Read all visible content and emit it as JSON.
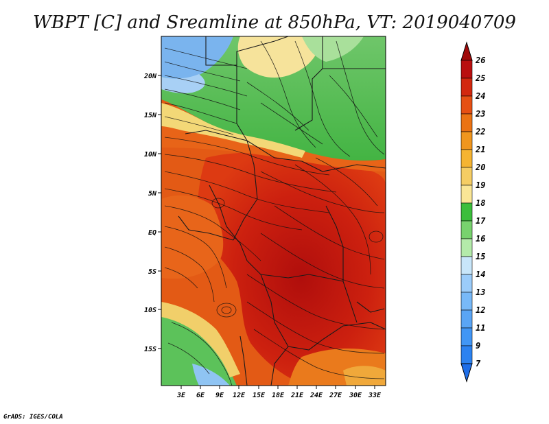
{
  "title": "WBPT [C] and Sreamline at 850hPa, VT: 2019040709",
  "credit": "GrADS: IGES/COLA",
  "map": {
    "lat_labels": [
      "20N",
      "15N",
      "10N",
      "5N",
      "EQ",
      "5S",
      "10S",
      "15S"
    ],
    "lon_labels": [
      "3E",
      "6E",
      "9E",
      "12E",
      "15E",
      "18E",
      "21E",
      "24E",
      "27E",
      "30E",
      "33E"
    ],
    "variable": "wet-bulb potential temperature",
    "level": "850hPa",
    "overlay": "streamlines"
  },
  "colorbar": {
    "labels": [
      "7",
      "9",
      "11",
      "12",
      "13",
      "14",
      "15",
      "16",
      "17",
      "18",
      "19",
      "20",
      "21",
      "22",
      "23",
      "24",
      "25",
      "26"
    ],
    "colors": [
      "#1e6ee8",
      "#2c82f0",
      "#4196f5",
      "#5aa5f5",
      "#78b9f8",
      "#9bccfa",
      "#c8e6fa",
      "#b4ebaa",
      "#78d26e",
      "#3cbe3c",
      "#fae696",
      "#f5cd64",
      "#f5b432",
      "#f0961e",
      "#eb7314",
      "#e65014",
      "#d2280f",
      "#b90f0f",
      "#a00a0a"
    ]
  }
}
